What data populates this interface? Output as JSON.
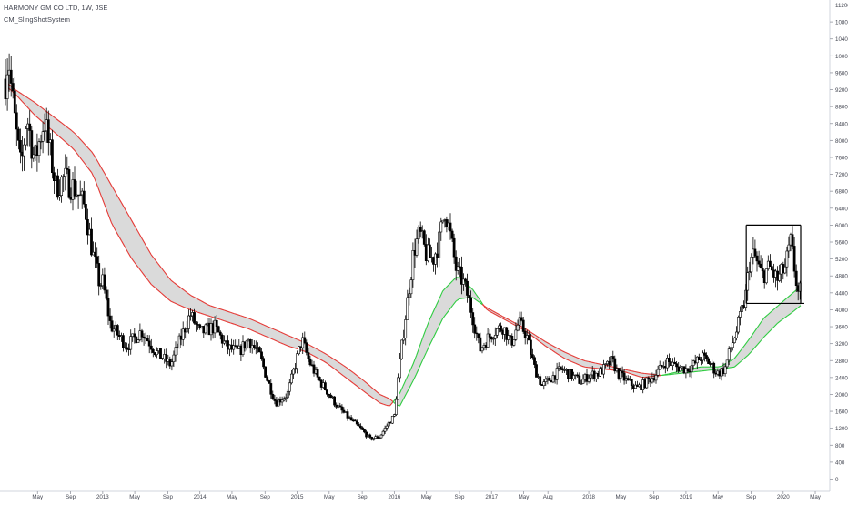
{
  "header": {
    "title": "HARMONY GM CO LTD, 1W, JSE",
    "indicator": "CM_SlingShotSystem"
  },
  "colors": {
    "background": "#ffffff",
    "candle": "#000000",
    "ema_bear": "#e53935",
    "ema_bull": "#2ecc40",
    "ribbon_fill": "#d6d6d6",
    "axis_text": "#434651"
  },
  "chart_data": {
    "type": "candlestick",
    "title": "HARMONY GM CO LTD, 1W, JSE",
    "y_axis_position": "right",
    "ylim": [
      0,
      11200
    ],
    "y_ticks": [
      0,
      400,
      800,
      1200,
      1600,
      2000,
      2400,
      2800,
      3200,
      3600,
      4000,
      4400,
      4800,
      5200,
      5600,
      6000,
      6400,
      6800,
      7200,
      7600,
      8000,
      8400,
      8800,
      9200,
      9600,
      10000,
      10400,
      10800,
      11200
    ],
    "x_ticks": [
      {
        "label": "May",
        "t": 2012.33
      },
      {
        "label": "Sep",
        "t": 2012.67
      },
      {
        "label": "2013",
        "t": 2013.0
      },
      {
        "label": "May",
        "t": 2013.33
      },
      {
        "label": "Sep",
        "t": 2013.67
      },
      {
        "label": "2014",
        "t": 2014.0
      },
      {
        "label": "May",
        "t": 2014.33
      },
      {
        "label": "Sep",
        "t": 2014.67
      },
      {
        "label": "2015",
        "t": 2015.0
      },
      {
        "label": "May",
        "t": 2015.33
      },
      {
        "label": "Sep",
        "t": 2015.67
      },
      {
        "label": "2016",
        "t": 2016.0
      },
      {
        "label": "May",
        "t": 2016.33
      },
      {
        "label": "Sep",
        "t": 2016.67
      },
      {
        "label": "2017",
        "t": 2017.0
      },
      {
        "label": "May",
        "t": 2017.33
      },
      {
        "label": "Aug",
        "t": 2017.58
      },
      {
        "label": "2018",
        "t": 2018.0
      },
      {
        "label": "May",
        "t": 2018.33
      },
      {
        "label": "Sep",
        "t": 2018.67
      },
      {
        "label": "2019",
        "t": 2019.0
      },
      {
        "label": "May",
        "t": 2019.33
      },
      {
        "label": "Sep",
        "t": 2019.67
      },
      {
        "label": "2020",
        "t": 2020.0
      },
      {
        "label": "May",
        "t": 2020.33
      }
    ],
    "price_path": [
      [
        2012.0,
        9450
      ],
      [
        2012.03,
        10050
      ],
      [
        2012.06,
        9250
      ],
      [
        2012.1,
        8400
      ],
      [
        2012.16,
        7300
      ],
      [
        2012.22,
        8600
      ],
      [
        2012.3,
        7500
      ],
      [
        2012.4,
        8500
      ],
      [
        2012.52,
        6900
      ],
      [
        2012.6,
        7100
      ],
      [
        2012.72,
        6850
      ],
      [
        2012.82,
        6400
      ],
      [
        2012.9,
        5300
      ],
      [
        2012.97,
        4600
      ],
      [
        2013.0,
        4650
      ],
      [
        2013.08,
        3650
      ],
      [
        2013.16,
        3400
      ],
      [
        2013.25,
        3150
      ],
      [
        2013.4,
        3500
      ],
      [
        2013.55,
        3000
      ],
      [
        2013.7,
        2700
      ],
      [
        2013.8,
        3300
      ],
      [
        2013.9,
        3900
      ],
      [
        2014.0,
        3450
      ],
      [
        2014.15,
        3600
      ],
      [
        2014.28,
        3100
      ],
      [
        2014.4,
        3000
      ],
      [
        2014.5,
        3300
      ],
      [
        2014.62,
        2900
      ],
      [
        2014.7,
        2300
      ],
      [
        2014.78,
        1800
      ],
      [
        2014.9,
        2000
      ],
      [
        2014.98,
        2700
      ],
      [
        2015.05,
        3300
      ],
      [
        2015.12,
        2800
      ],
      [
        2015.22,
        2350
      ],
      [
        2015.3,
        2100
      ],
      [
        2015.42,
        1700
      ],
      [
        2015.55,
        1400
      ],
      [
        2015.65,
        1200
      ],
      [
        2015.75,
        950
      ],
      [
        2015.85,
        1000
      ],
      [
        2015.92,
        1250
      ],
      [
        2016.0,
        1500
      ],
      [
        2016.03,
        2200
      ],
      [
        2016.08,
        3200
      ],
      [
        2016.14,
        4300
      ],
      [
        2016.2,
        5400
      ],
      [
        2016.26,
        5800
      ],
      [
        2016.33,
        5300
      ],
      [
        2016.4,
        5200
      ],
      [
        2016.46,
        5600
      ],
      [
        2016.52,
        6400
      ],
      [
        2016.58,
        5700
      ],
      [
        2016.64,
        4900
      ],
      [
        2016.7,
        4700
      ],
      [
        2016.76,
        4300
      ],
      [
        2016.82,
        3700
      ],
      [
        2016.88,
        3050
      ],
      [
        2016.95,
        3300
      ],
      [
        2017.03,
        3500
      ],
      [
        2017.12,
        3600
      ],
      [
        2017.2,
        3200
      ],
      [
        2017.28,
        3700
      ],
      [
        2017.36,
        3400
      ],
      [
        2017.44,
        2650
      ],
      [
        2017.52,
        2200
      ],
      [
        2017.62,
        2400
      ],
      [
        2017.72,
        2600
      ],
      [
        2017.82,
        2450
      ],
      [
        2017.92,
        2300
      ],
      [
        2018.0,
        2450
      ],
      [
        2018.1,
        2500
      ],
      [
        2018.18,
        2650
      ],
      [
        2018.24,
        2800
      ],
      [
        2018.3,
        2500
      ],
      [
        2018.4,
        2300
      ],
      [
        2018.5,
        2150
      ],
      [
        2018.6,
        2300
      ],
      [
        2018.7,
        2500
      ],
      [
        2018.8,
        2800
      ],
      [
        2018.9,
        2650
      ],
      [
        2019.0,
        2600
      ],
      [
        2019.08,
        2700
      ],
      [
        2019.16,
        2900
      ],
      [
        2019.24,
        2750
      ],
      [
        2019.32,
        2500
      ],
      [
        2019.4,
        2600
      ],
      [
        2019.46,
        3100
      ],
      [
        2019.52,
        3500
      ],
      [
        2019.58,
        4000
      ],
      [
        2019.62,
        4400
      ],
      [
        2019.65,
        5100
      ],
      [
        2019.7,
        5300
      ],
      [
        2019.78,
        4800
      ],
      [
        2019.86,
        5000
      ],
      [
        2019.94,
        4700
      ],
      [
        2020.02,
        5000
      ],
      [
        2020.08,
        5600
      ],
      [
        2020.12,
        4900
      ],
      [
        2020.16,
        4300
      ],
      [
        2020.18,
        4500
      ]
    ],
    "ema_fast": [
      [
        2012.0,
        9300
      ],
      [
        2012.1,
        9100
      ],
      [
        2012.3,
        8600
      ],
      [
        2012.5,
        8200
      ],
      [
        2012.7,
        7800
      ],
      [
        2012.9,
        7200
      ],
      [
        2013.1,
        6000
      ],
      [
        2013.3,
        5200
      ],
      [
        2013.5,
        4600
      ],
      [
        2013.7,
        4200
      ],
      [
        2013.9,
        4000
      ],
      [
        2014.1,
        3850
      ],
      [
        2014.3,
        3700
      ],
      [
        2014.5,
        3550
      ],
      [
        2014.7,
        3350
      ],
      [
        2014.9,
        3150
      ],
      [
        2015.1,
        3000
      ],
      [
        2015.3,
        2750
      ],
      [
        2015.5,
        2400
      ],
      [
        2015.7,
        2050
      ],
      [
        2015.85,
        1800
      ],
      [
        2015.95,
        1720
      ],
      [
        2016.05,
        2000
      ],
      [
        2016.2,
        2750
      ],
      [
        2016.35,
        3700
      ],
      [
        2016.5,
        4450
      ],
      [
        2016.65,
        4800
      ],
      [
        2016.8,
        4500
      ],
      [
        2016.95,
        4000
      ],
      [
        2017.15,
        3750
      ],
      [
        2017.35,
        3500
      ],
      [
        2017.55,
        3150
      ],
      [
        2017.75,
        2850
      ],
      [
        2017.95,
        2650
      ],
      [
        2018.15,
        2600
      ],
      [
        2018.35,
        2550
      ],
      [
        2018.55,
        2400
      ],
      [
        2018.75,
        2450
      ],
      [
        2018.95,
        2550
      ],
      [
        2019.15,
        2650
      ],
      [
        2019.35,
        2650
      ],
      [
        2019.5,
        2850
      ],
      [
        2019.65,
        3300
      ],
      [
        2019.8,
        3800
      ],
      [
        2019.95,
        4100
      ],
      [
        2020.1,
        4400
      ],
      [
        2020.18,
        4550
      ]
    ],
    "ema_slow": [
      [
        2012.0,
        9400
      ],
      [
        2012.1,
        9200
      ],
      [
        2012.3,
        8900
      ],
      [
        2012.5,
        8550
      ],
      [
        2012.7,
        8200
      ],
      [
        2012.9,
        7700
      ],
      [
        2013.1,
        6900
      ],
      [
        2013.3,
        6100
      ],
      [
        2013.5,
        5300
      ],
      [
        2013.7,
        4700
      ],
      [
        2013.9,
        4350
      ],
      [
        2014.1,
        4100
      ],
      [
        2014.3,
        3950
      ],
      [
        2014.5,
        3800
      ],
      [
        2014.7,
        3600
      ],
      [
        2014.9,
        3400
      ],
      [
        2015.1,
        3200
      ],
      [
        2015.3,
        2950
      ],
      [
        2015.5,
        2650
      ],
      [
        2015.7,
        2300
      ],
      [
        2015.85,
        2000
      ],
      [
        2015.95,
        1900
      ],
      [
        2016.05,
        1700
      ],
      [
        2016.2,
        2350
      ],
      [
        2016.35,
        3100
      ],
      [
        2016.5,
        3800
      ],
      [
        2016.65,
        4250
      ],
      [
        2016.8,
        4300
      ],
      [
        2016.95,
        4050
      ],
      [
        2017.15,
        3800
      ],
      [
        2017.35,
        3550
      ],
      [
        2017.55,
        3250
      ],
      [
        2017.75,
        3000
      ],
      [
        2017.95,
        2800
      ],
      [
        2018.15,
        2700
      ],
      [
        2018.35,
        2600
      ],
      [
        2018.55,
        2500
      ],
      [
        2018.75,
        2450
      ],
      [
        2018.95,
        2500
      ],
      [
        2019.15,
        2550
      ],
      [
        2019.35,
        2600
      ],
      [
        2019.5,
        2650
      ],
      [
        2019.65,
        2950
      ],
      [
        2019.8,
        3350
      ],
      [
        2019.95,
        3700
      ],
      [
        2020.1,
        3950
      ],
      [
        2020.18,
        4100
      ]
    ],
    "range_box": {
      "t0": 2019.62,
      "t1": 2020.18,
      "top": 6000,
      "bottom": 4150
    },
    "grid": false,
    "legend": "none"
  }
}
